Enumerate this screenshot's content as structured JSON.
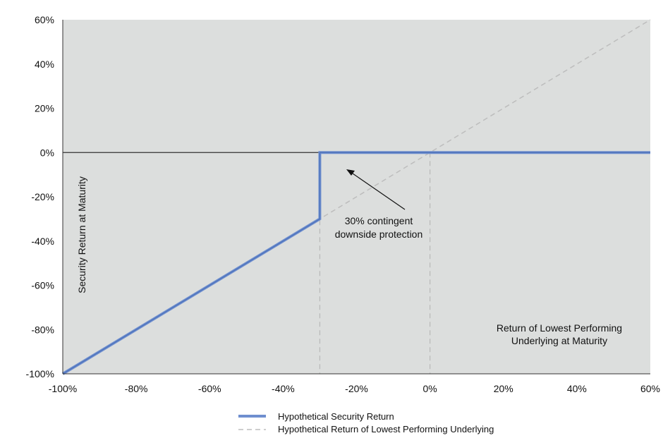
{
  "chart_data": {
    "type": "line",
    "xlim": [
      -100,
      60
    ],
    "ylim": [
      -100,
      60
    ],
    "x_ticks": [
      "-100%",
      "-80%",
      "-60%",
      "-40%",
      "-20%",
      "0%",
      "20%",
      "40%",
      "60%"
    ],
    "y_ticks": [
      "60%",
      "40%",
      "20%",
      "0%",
      "-20%",
      "-40%",
      "-60%",
      "-80%",
      "-100%"
    ],
    "ylabel": "Security Return at Maturity",
    "xlabel_lines": [
      "Return of Lowest Performing",
      "Underlying at Maturity"
    ],
    "annotation_lines": [
      "30% contingent",
      "downside protection"
    ],
    "grid": false,
    "legend_position": "bottom",
    "series": [
      {
        "name": "Hypothetical Security Return",
        "color": "#6f8fcf",
        "style": "solid",
        "points": [
          [
            -100,
            -100
          ],
          [
            -30,
            -30
          ],
          [
            -30,
            0
          ],
          [
            60,
            0
          ]
        ]
      },
      {
        "name": "Hypothetical Return of Lowest Performing Underlying",
        "color": "#bdbdbd",
        "style": "dashed",
        "points": [
          [
            -100,
            -100
          ],
          [
            60,
            60
          ]
        ]
      }
    ],
    "reference_lines": {
      "vertical_x": [
        -30,
        0
      ],
      "horizontal_y": [
        0
      ]
    },
    "colors": {
      "plot_background": "#dcdedd",
      "zero_line": "#333333"
    }
  }
}
